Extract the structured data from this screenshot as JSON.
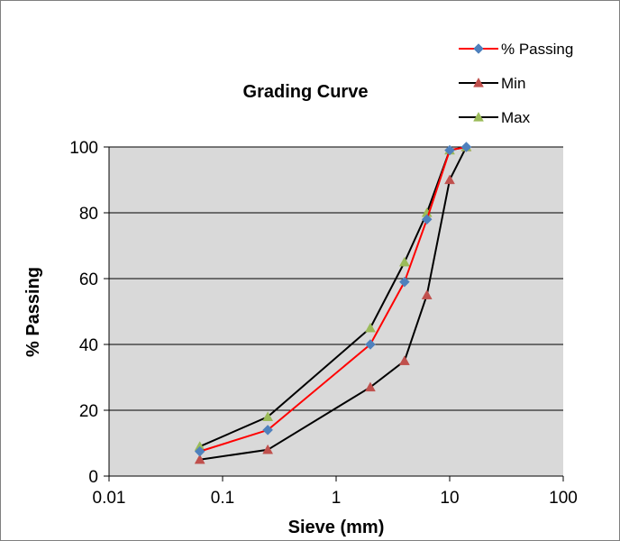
{
  "chart_data": {
    "type": "line",
    "title": "Grading Curve",
    "xlabel": "Sieve (mm)",
    "ylabel": "% Passing",
    "xscale": "log",
    "xlim": [
      0.01,
      100
    ],
    "ylim": [
      0,
      100
    ],
    "x_ticks": [
      "0.01",
      "0.1",
      "1",
      "10",
      "100"
    ],
    "y_ticks": [
      "0",
      "20",
      "40",
      "60",
      "80",
      "100"
    ],
    "grid": "horizontal",
    "plot_background": "#d9d9d9",
    "legend_position": "top-right",
    "series": [
      {
        "name": "% Passing",
        "color": "#ff0000",
        "marker": "diamond",
        "marker_color": "#4f81bd",
        "points": [
          {
            "x": 0.063,
            "y": 7.5
          },
          {
            "x": 0.25,
            "y": 14
          },
          {
            "x": 2,
            "y": 40
          },
          {
            "x": 4,
            "y": 59
          },
          {
            "x": 6.3,
            "y": 78
          },
          {
            "x": 10,
            "y": 99
          },
          {
            "x": 14,
            "y": 100
          }
        ]
      },
      {
        "name": "Min",
        "color": "#000000",
        "marker": "triangle",
        "marker_color": "#c0504d",
        "points": [
          {
            "x": 0.063,
            "y": 5
          },
          {
            "x": 0.25,
            "y": 8
          },
          {
            "x": 2,
            "y": 27
          },
          {
            "x": 4,
            "y": 35
          },
          {
            "x": 6.3,
            "y": 55
          },
          {
            "x": 10,
            "y": 90
          },
          {
            "x": 14,
            "y": 100
          }
        ]
      },
      {
        "name": "Max",
        "color": "#000000",
        "marker": "triangle",
        "marker_color": "#9bbb59",
        "points": [
          {
            "x": 0.063,
            "y": 9
          },
          {
            "x": 0.25,
            "y": 18
          },
          {
            "x": 2,
            "y": 45
          },
          {
            "x": 4,
            "y": 65
          },
          {
            "x": 6.3,
            "y": 80
          },
          {
            "x": 10,
            "y": 99
          },
          {
            "x": 14,
            "y": 100
          }
        ]
      }
    ]
  }
}
